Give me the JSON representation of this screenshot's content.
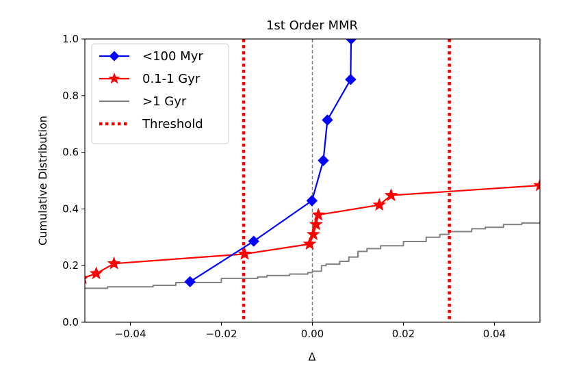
{
  "chart_data": {
    "type": "line",
    "title": "1st Order MMR",
    "xlabel": "Δ",
    "ylabel": "Cumulative Distribution",
    "xlim": [
      -0.05,
      0.05
    ],
    "ylim": [
      0.0,
      1.0
    ],
    "xticks": [
      -0.04,
      -0.02,
      0.0,
      0.02,
      0.04
    ],
    "xtick_labels": [
      "−0.04",
      "−0.02",
      "0.00",
      "0.02",
      "0.04"
    ],
    "yticks": [
      0.0,
      0.2,
      0.4,
      0.6,
      0.8,
      1.0
    ],
    "ytick_labels": [
      "0.0",
      "0.2",
      "0.4",
      "0.6",
      "0.8",
      "1.0"
    ],
    "grid": false,
    "legend_position": "top-left",
    "reference_line": {
      "x": 0.0,
      "style": "dashed",
      "color": "#808080"
    },
    "series": [
      {
        "name": "<100 Myr",
        "color": "#0000ff",
        "marker": "diamond",
        "x": [
          -0.0269,
          -0.0129,
          -0.0001,
          0.0024,
          0.0033,
          0.0084,
          0.0085
        ],
        "y": [
          0.143,
          0.286,
          0.429,
          0.571,
          0.714,
          0.857,
          1.0
        ]
      },
      {
        "name": "0.1-1 Gyr",
        "color": "#ff0000",
        "marker": "star",
        "x": [
          -0.0505,
          -0.0475,
          -0.0436,
          -0.0149,
          -0.0006,
          0.0002,
          0.0008,
          0.0013,
          0.0147,
          0.0173,
          0.05
        ],
        "y": [
          0.155,
          0.172,
          0.207,
          0.241,
          0.276,
          0.31,
          0.345,
          0.379,
          0.414,
          0.448,
          0.483
        ]
      },
      {
        "name": ">1 Gyr",
        "color": "#808080",
        "marker": "none",
        "x": [
          -0.05,
          -0.045,
          -0.035,
          -0.032,
          -0.03,
          -0.02,
          -0.012,
          -0.01,
          -0.005,
          -0.001,
          0.0,
          0.002,
          0.003,
          0.006,
          0.008,
          0.01,
          0.012,
          0.015,
          0.02,
          0.025,
          0.028,
          0.03,
          0.035,
          0.038,
          0.042,
          0.046,
          0.05
        ],
        "y": [
          0.12,
          0.125,
          0.13,
          0.13,
          0.14,
          0.155,
          0.16,
          0.165,
          0.17,
          0.175,
          0.18,
          0.2,
          0.205,
          0.215,
          0.23,
          0.25,
          0.26,
          0.27,
          0.285,
          0.3,
          0.31,
          0.32,
          0.33,
          0.335,
          0.345,
          0.35,
          0.355
        ]
      },
      {
        "name": "Threshold",
        "color": "#ff0000",
        "marker": "none",
        "style": "dotted",
        "vlines": [
          -0.0151,
          0.0301
        ]
      }
    ]
  }
}
